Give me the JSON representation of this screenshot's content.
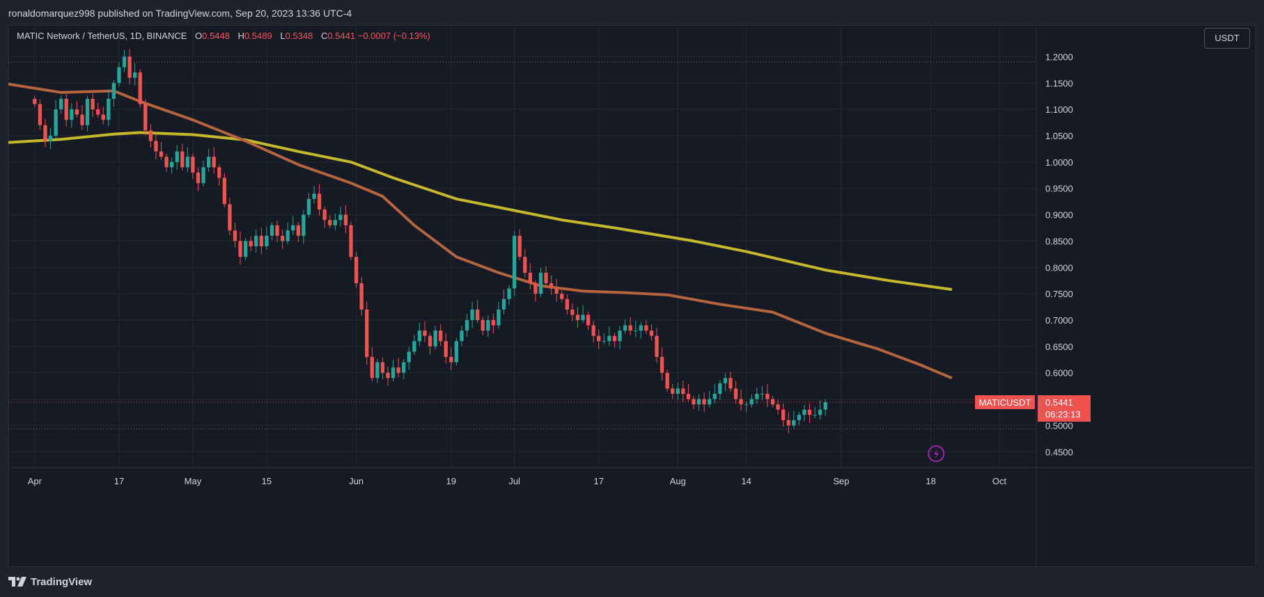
{
  "header": {
    "published_text": "ronaldomarquez998 published on TradingView.com, Sep 20, 2023 13:36 UTC-4"
  },
  "legend": {
    "symbol_text": "MATIC Network / TetherUS, 1D, BINANCE",
    "open_label": "O",
    "open_value": "0.5448",
    "high_label": "H",
    "high_value": "0.5489",
    "low_label": "L",
    "low_value": "0.5348",
    "close_label": "C",
    "close_value": "0.5441",
    "change_value": "−0.0007 (−0.13%)"
  },
  "currency_button": {
    "label": "USDT"
  },
  "price_tag": {
    "symbol": "MATICUSDT",
    "price": "0.5441",
    "countdown": "06:23:13"
  },
  "footer": {
    "brand": "TradingView"
  },
  "colors": {
    "up": "#26a69a",
    "down": "#ef5350",
    "ma_short": "#b5653d",
    "ma_long": "#c6b82c",
    "grid": "#242833",
    "background": "#161a25"
  },
  "icons": {
    "flash": "lightning-icon"
  },
  "chart_data": {
    "type": "candlestick",
    "title": "MATIC Network / TetherUS, 1D, BINANCE",
    "y_range": [
      0.42,
      1.26
    ],
    "y_ticks": [
      "1.2000",
      "1.1500",
      "1.1000",
      "1.0500",
      "1.0000",
      "0.9500",
      "0.9000",
      "0.8500",
      "0.8000",
      "0.7500",
      "0.7000",
      "0.6500",
      "0.6000",
      "0.5500",
      "0.5000",
      "0.4500"
    ],
    "y_tick_values": [
      1.2,
      1.15,
      1.1,
      1.05,
      1.0,
      0.95,
      0.9,
      0.85,
      0.8,
      0.75,
      0.7,
      0.65,
      0.6,
      0.55,
      0.5,
      0.45
    ],
    "x_ticks": [
      {
        "label": "Apr",
        "day": 0
      },
      {
        "label": "17",
        "day": 16
      },
      {
        "label": "May",
        "day": 30
      },
      {
        "label": "15",
        "day": 44
      },
      {
        "label": "Jun",
        "day": 61
      },
      {
        "label": "19",
        "day": 79
      },
      {
        "label": "Jul",
        "day": 91
      },
      {
        "label": "17",
        "day": 107
      },
      {
        "label": "Aug",
        "day": 122
      },
      {
        "label": "14",
        "day": 135
      },
      {
        "label": "Sep",
        "day": 153
      },
      {
        "label": "18",
        "day": 170
      },
      {
        "label": "Oct",
        "day": 183
      }
    ],
    "x_range": [
      -5,
      190
    ],
    "levels": {
      "high_line": 1.19,
      "low_line": 0.493,
      "last_price": 0.5441
    },
    "close": [
      1.11,
      1.07,
      1.04,
      1.05,
      1.1,
      1.12,
      1.08,
      1.1,
      1.09,
      1.07,
      1.12,
      1.1,
      1.09,
      1.08,
      1.12,
      1.15,
      1.18,
      1.2,
      1.16,
      1.17,
      1.11,
      1.06,
      1.04,
      1.02,
      1.01,
      0.99,
      1.0,
      1.02,
      0.99,
      1.01,
      0.98,
      0.96,
      0.99,
      1.01,
      0.99,
      0.97,
      0.92,
      0.87,
      0.85,
      0.82,
      0.85,
      0.84,
      0.86,
      0.84,
      0.86,
      0.88,
      0.86,
      0.85,
      0.87,
      0.88,
      0.86,
      0.9,
      0.93,
      0.94,
      0.91,
      0.89,
      0.88,
      0.89,
      0.9,
      0.88,
      0.82,
      0.77,
      0.72,
      0.63,
      0.59,
      0.62,
      0.6,
      0.59,
      0.61,
      0.6,
      0.62,
      0.64,
      0.66,
      0.68,
      0.67,
      0.65,
      0.68,
      0.66,
      0.63,
      0.62,
      0.66,
      0.68,
      0.7,
      0.72,
      0.7,
      0.68,
      0.7,
      0.69,
      0.72,
      0.74,
      0.76,
      0.86,
      0.82,
      0.79,
      0.77,
      0.75,
      0.79,
      0.77,
      0.76,
      0.75,
      0.74,
      0.72,
      0.71,
      0.7,
      0.71,
      0.69,
      0.67,
      0.66,
      0.66,
      0.67,
      0.66,
      0.68,
      0.69,
      0.68,
      0.68,
      0.69,
      0.68,
      0.67,
      0.63,
      0.6,
      0.57,
      0.56,
      0.57,
      0.56,
      0.55,
      0.54,
      0.55,
      0.54,
      0.55,
      0.56,
      0.58,
      0.59,
      0.57,
      0.55,
      0.54,
      0.54,
      0.55,
      0.56,
      0.56,
      0.55,
      0.54,
      0.53,
      0.51,
      0.5,
      0.51,
      0.52,
      0.53,
      0.52,
      0.52,
      0.53,
      0.5441
    ],
    "ma_short": [
      {
        "day": -5,
        "v": 1.148
      },
      {
        "day": 5,
        "v": 1.132
      },
      {
        "day": 15,
        "v": 1.135
      },
      {
        "day": 20,
        "v": 1.115
      },
      {
        "day": 30,
        "v": 1.08
      },
      {
        "day": 40,
        "v": 1.04
      },
      {
        "day": 50,
        "v": 0.995
      },
      {
        "day": 60,
        "v": 0.96
      },
      {
        "day": 66,
        "v": 0.935
      },
      {
        "day": 72,
        "v": 0.88
      },
      {
        "day": 80,
        "v": 0.82
      },
      {
        "day": 88,
        "v": 0.79
      },
      {
        "day": 96,
        "v": 0.765
      },
      {
        "day": 104,
        "v": 0.755
      },
      {
        "day": 112,
        "v": 0.752
      },
      {
        "day": 120,
        "v": 0.748
      },
      {
        "day": 130,
        "v": 0.73
      },
      {
        "day": 140,
        "v": 0.715
      },
      {
        "day": 150,
        "v": 0.675
      },
      {
        "day": 160,
        "v": 0.645
      },
      {
        "day": 168,
        "v": 0.615
      },
      {
        "day": 174,
        "v": 0.59
      }
    ],
    "ma_long": [
      {
        "day": -5,
        "v": 1.037
      },
      {
        "day": 5,
        "v": 1.043
      },
      {
        "day": 15,
        "v": 1.053
      },
      {
        "day": 20,
        "v": 1.056
      },
      {
        "day": 30,
        "v": 1.052
      },
      {
        "day": 40,
        "v": 1.042
      },
      {
        "day": 50,
        "v": 1.02
      },
      {
        "day": 60,
        "v": 1.0
      },
      {
        "day": 68,
        "v": 0.97
      },
      {
        "day": 80,
        "v": 0.93
      },
      {
        "day": 90,
        "v": 0.91
      },
      {
        "day": 100,
        "v": 0.89
      },
      {
        "day": 110,
        "v": 0.875
      },
      {
        "day": 125,
        "v": 0.85
      },
      {
        "day": 135,
        "v": 0.83
      },
      {
        "day": 150,
        "v": 0.795
      },
      {
        "day": 162,
        "v": 0.775
      },
      {
        "day": 174,
        "v": 0.758
      }
    ]
  }
}
